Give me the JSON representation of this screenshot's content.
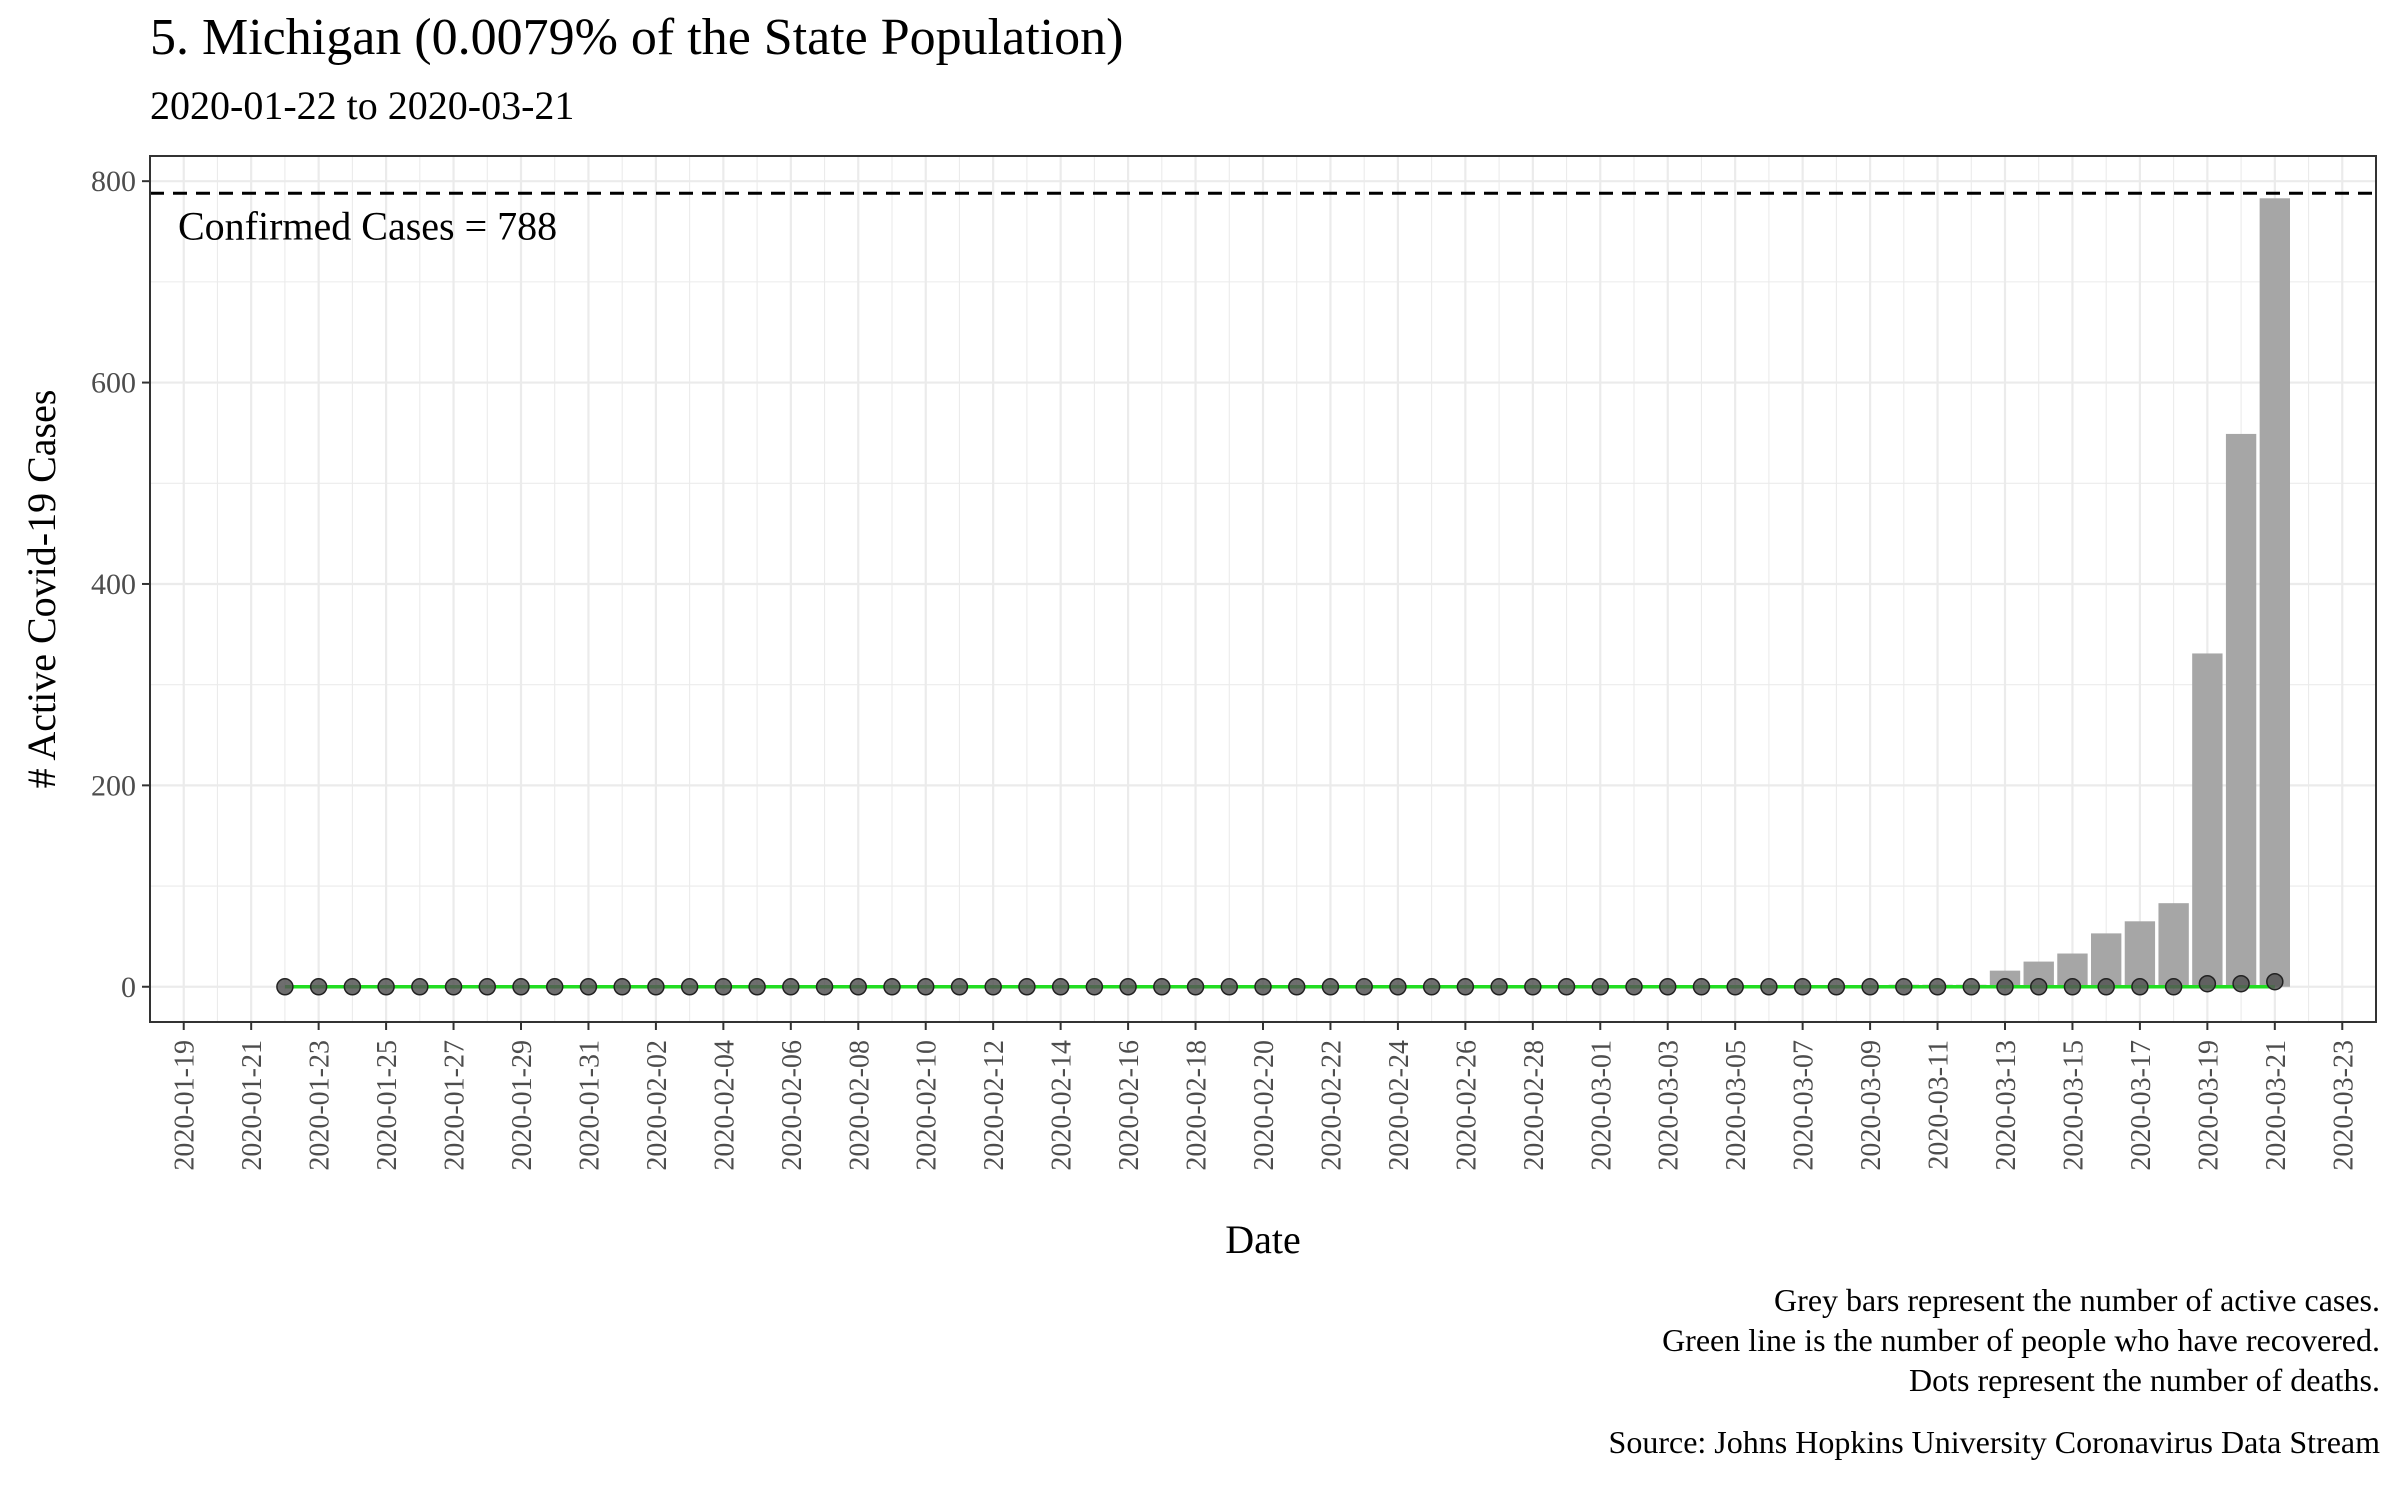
{
  "title": "5. Michigan (0.0079% of the State Population)",
  "subtitle": "2020-01-22 to 2020-03-21",
  "caption": {
    "line1": "Grey bars represent the number of active cases.",
    "line2": "Green line is the number of people who have recovered.",
    "line3": "Dots represent the number of deaths.",
    "source": "Source: Johns Hopkins University Coronavirus Data Stream"
  },
  "colors": {
    "bar": "#a6a6a6",
    "recovered_line": "#22dd22",
    "death_dot": "#555555",
    "grid": "#ebebeb",
    "reference_line": "#000000"
  },
  "chart_data": {
    "type": "bar",
    "xlabel": "Date",
    "ylabel": "# Active Covid-19 Cases",
    "ylim": [
      -35,
      825
    ],
    "y_ticks": [
      0,
      200,
      400,
      600,
      800
    ],
    "x_ticks": [
      "2020-01-19",
      "2020-01-21",
      "2020-01-23",
      "2020-01-25",
      "2020-01-27",
      "2020-01-29",
      "2020-01-31",
      "2020-02-02",
      "2020-02-04",
      "2020-02-06",
      "2020-02-08",
      "2020-02-10",
      "2020-02-12",
      "2020-02-14",
      "2020-02-16",
      "2020-02-18",
      "2020-02-20",
      "2020-02-22",
      "2020-02-24",
      "2020-02-26",
      "2020-02-28",
      "2020-03-01",
      "2020-03-03",
      "2020-03-05",
      "2020-03-07",
      "2020-03-09",
      "2020-03-11",
      "2020-03-13",
      "2020-03-15",
      "2020-03-17",
      "2020-03-19",
      "2020-03-21",
      "2020-03-23"
    ],
    "xlim": [
      "2020-01-18",
      "2020-03-24"
    ],
    "grid": true,
    "reference_line": {
      "value": 788,
      "label": "Confirmed Cases = 788",
      "style": "dashed"
    },
    "dates": [
      "2020-01-22",
      "2020-01-23",
      "2020-01-24",
      "2020-01-25",
      "2020-01-26",
      "2020-01-27",
      "2020-01-28",
      "2020-01-29",
      "2020-01-30",
      "2020-01-31",
      "2020-02-01",
      "2020-02-02",
      "2020-02-03",
      "2020-02-04",
      "2020-02-05",
      "2020-02-06",
      "2020-02-07",
      "2020-02-08",
      "2020-02-09",
      "2020-02-10",
      "2020-02-11",
      "2020-02-12",
      "2020-02-13",
      "2020-02-14",
      "2020-02-15",
      "2020-02-16",
      "2020-02-17",
      "2020-02-18",
      "2020-02-19",
      "2020-02-20",
      "2020-02-21",
      "2020-02-22",
      "2020-02-23",
      "2020-02-24",
      "2020-02-25",
      "2020-02-26",
      "2020-02-27",
      "2020-02-28",
      "2020-02-29",
      "2020-03-01",
      "2020-03-02",
      "2020-03-03",
      "2020-03-04",
      "2020-03-05",
      "2020-03-06",
      "2020-03-07",
      "2020-03-08",
      "2020-03-09",
      "2020-03-10",
      "2020-03-11",
      "2020-03-12",
      "2020-03-13",
      "2020-03-14",
      "2020-03-15",
      "2020-03-16",
      "2020-03-17",
      "2020-03-18",
      "2020-03-19",
      "2020-03-20",
      "2020-03-21"
    ],
    "series": [
      {
        "name": "Active cases",
        "kind": "bar",
        "values": [
          0,
          0,
          0,
          0,
          0,
          0,
          0,
          0,
          0,
          0,
          0,
          0,
          0,
          0,
          0,
          0,
          0,
          0,
          0,
          0,
          0,
          0,
          0,
          0,
          0,
          0,
          0,
          0,
          0,
          0,
          0,
          0,
          0,
          0,
          0,
          0,
          0,
          0,
          0,
          0,
          0,
          0,
          0,
          0,
          0,
          0,
          0,
          0,
          2,
          2,
          2,
          16,
          25,
          33,
          53,
          65,
          83,
          331,
          549,
          783
        ]
      },
      {
        "name": "Recovered",
        "kind": "line",
        "values": [
          0,
          0,
          0,
          0,
          0,
          0,
          0,
          0,
          0,
          0,
          0,
          0,
          0,
          0,
          0,
          0,
          0,
          0,
          0,
          0,
          0,
          0,
          0,
          0,
          0,
          0,
          0,
          0,
          0,
          0,
          0,
          0,
          0,
          0,
          0,
          0,
          0,
          0,
          0,
          0,
          0,
          0,
          0,
          0,
          0,
          0,
          0,
          0,
          0,
          0,
          0,
          0,
          0,
          0,
          0,
          0,
          0,
          0,
          0,
          0
        ]
      },
      {
        "name": "Deaths",
        "kind": "dots",
        "values": [
          0,
          0,
          0,
          0,
          0,
          0,
          0,
          0,
          0,
          0,
          0,
          0,
          0,
          0,
          0,
          0,
          0,
          0,
          0,
          0,
          0,
          0,
          0,
          0,
          0,
          0,
          0,
          0,
          0,
          0,
          0,
          0,
          0,
          0,
          0,
          0,
          0,
          0,
          0,
          0,
          0,
          0,
          0,
          0,
          0,
          0,
          0,
          0,
          0,
          0,
          0,
          0,
          0,
          0,
          0,
          0,
          0,
          3,
          3,
          5
        ]
      }
    ]
  }
}
